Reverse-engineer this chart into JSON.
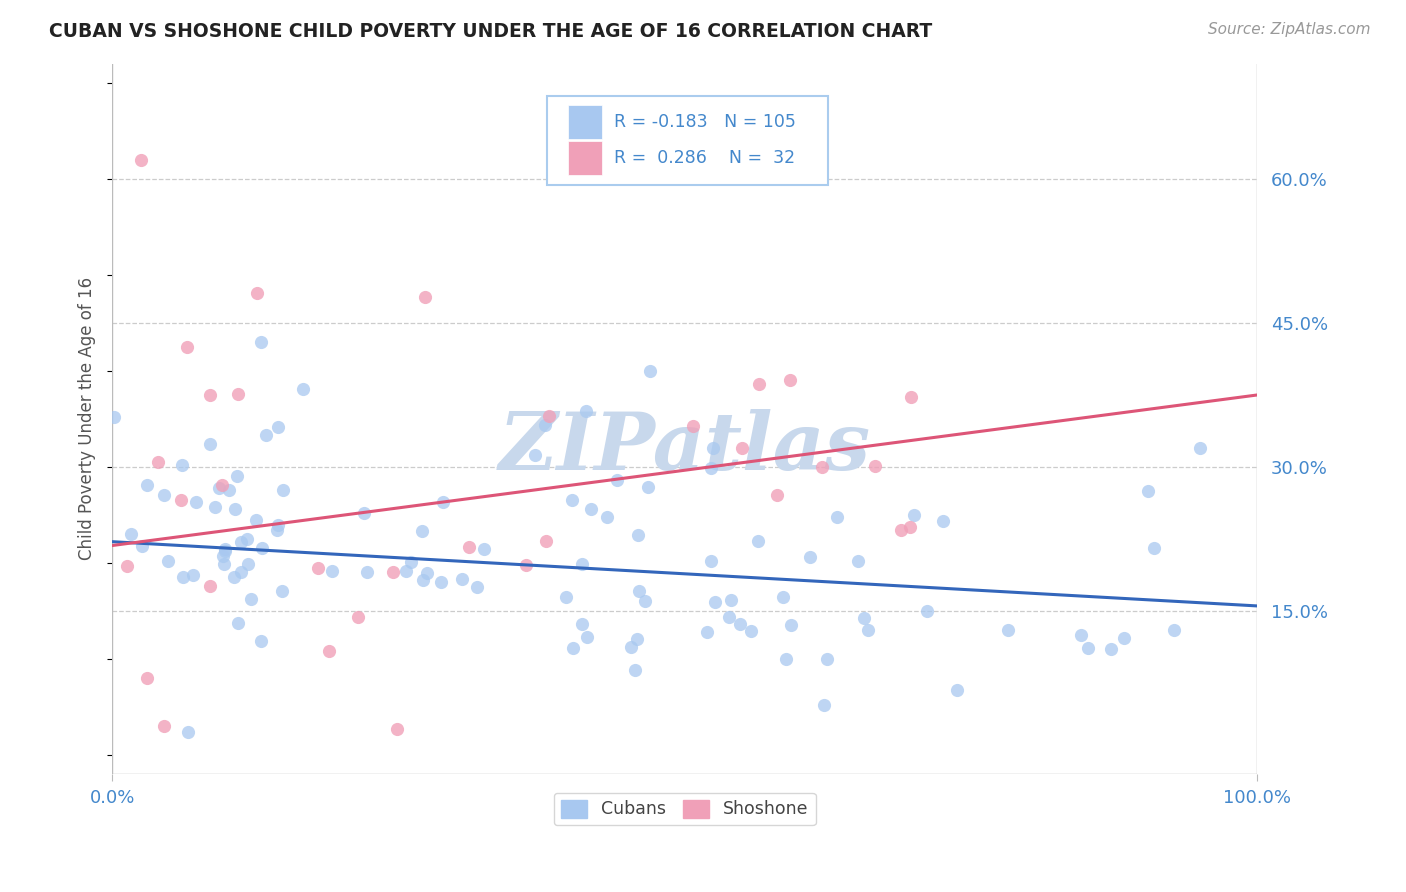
{
  "title": "CUBAN VS SHOSHONE CHILD POVERTY UNDER THE AGE OF 16 CORRELATION CHART",
  "source": "Source: ZipAtlas.com",
  "ylabel": "Child Poverty Under the Age of 16",
  "xlim": [
    0.0,
    1.0
  ],
  "ylim": [
    -0.02,
    0.72
  ],
  "yticks": [
    0.15,
    0.3,
    0.45,
    0.6
  ],
  "ytick_labels": [
    "15.0%",
    "30.0%",
    "45.0%",
    "60.0%"
  ],
  "xticks": [
    0.0,
    1.0
  ],
  "xtick_labels": [
    "0.0%",
    "100.0%"
  ],
  "cubans_color": "#A8C8F0",
  "shoshone_color": "#F0A0B8",
  "cubans_line_color": "#3366BB",
  "shoshone_line_color": "#DD5577",
  "background_color": "#FFFFFF",
  "grid_color": "#CCCCCC",
  "title_color": "#222222",
  "axis_label_color": "#4488CC",
  "watermark": "ZIPatlas",
  "watermark_color": "#C8D8EC",
  "legend_R1": "-0.183",
  "legend_N1": "105",
  "legend_R2": "0.286",
  "legend_N2": "32",
  "cubans_line_x0": 0.0,
  "cubans_line_y0": 0.222,
  "cubans_line_x1": 1.0,
  "cubans_line_y1": 0.155,
  "shoshone_line_x0": 0.0,
  "shoshone_line_y0": 0.218,
  "shoshone_line_x1": 1.0,
  "shoshone_line_y1": 0.375
}
